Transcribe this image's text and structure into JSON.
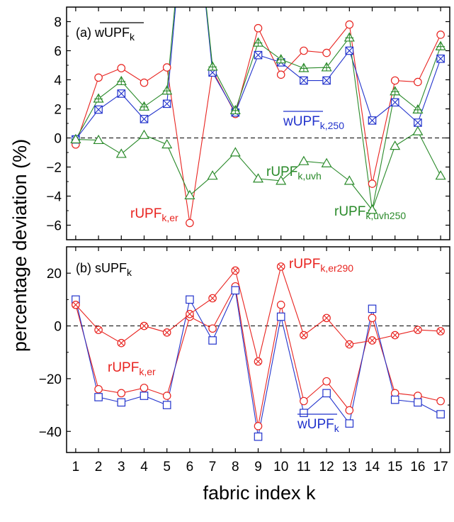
{
  "chart_data": [
    {
      "type": "line",
      "panel_label": "(a)",
      "panel_label_main": "wUPF",
      "panel_label_sub": "k",
      "panel_label_overline": true,
      "x": [
        1,
        2,
        3,
        4,
        5,
        6,
        7,
        8,
        9,
        10,
        11,
        12,
        13,
        14,
        15,
        16,
        17
      ],
      "ylim": [
        -7,
        9
      ],
      "yticks": [
        -6,
        -4,
        -2,
        0,
        2,
        4,
        6,
        8
      ],
      "xticks": [
        1,
        2,
        3,
        4,
        5,
        6,
        7,
        8,
        9,
        10,
        11,
        12,
        13,
        14,
        15,
        16,
        17
      ],
      "reference_line": 0,
      "series": [
        {
          "color": "#e8231f",
          "marker": "circle",
          "values": [
            -0.45,
            4.15,
            4.8,
            3.8,
            4.85,
            -5.85,
            4.65,
            1.65,
            7.55,
            4.35,
            6.0,
            5.85,
            7.8,
            -3.15,
            3.95,
            3.85,
            7.1
          ]
        },
        {
          "color": "#2233cc",
          "marker": "square-x",
          "values": [
            -0.1,
            1.95,
            3.05,
            1.3,
            2.35,
            20,
            4.5,
            1.75,
            5.7,
            5.2,
            3.95,
            3.95,
            6.0,
            1.2,
            2.45,
            1.05,
            5.45
          ]
        },
        {
          "color": "#2a8a2a",
          "marker": "triangle-plus",
          "values": [
            -0.1,
            2.7,
            3.9,
            2.15,
            3.25,
            20,
            4.9,
            1.9,
            6.55,
            5.4,
            4.8,
            4.85,
            6.9,
            -4.95,
            3.2,
            1.95,
            6.3
          ]
        },
        {
          "color": "#2a8a2a",
          "marker": "triangle",
          "values": [
            -0.1,
            -0.15,
            -1.1,
            0.2,
            -0.45,
            -3.95,
            -2.6,
            -1.0,
            -2.8,
            -2.95,
            -1.6,
            -1.75,
            -2.95,
            -4.95,
            -0.55,
            0.45,
            -2.6
          ]
        }
      ],
      "annotations": [
        {
          "main": "wUPF",
          "sub": "k,250",
          "overline": true,
          "color": "#2233cc"
        },
        {
          "main": "rUPF",
          "sub": "k,uvh",
          "overline": false,
          "color": "#2a8a2a"
        },
        {
          "main": "rUPF",
          "sub": "k,er",
          "overline": false,
          "color": "#e8231f"
        },
        {
          "main": "rUPF",
          "sub": "k,uvh250",
          "overline": false,
          "color": "#2a8a2a"
        }
      ]
    },
    {
      "type": "line",
      "panel_label": "(b)",
      "panel_label_main": "sUPF",
      "panel_label_sub": "k",
      "panel_label_overline": false,
      "x": [
        1,
        2,
        3,
        4,
        5,
        6,
        7,
        8,
        9,
        10,
        11,
        12,
        13,
        14,
        15,
        16,
        17
      ],
      "ylim": [
        -48,
        30
      ],
      "yticks": [
        -40,
        -20,
        0,
        20
      ],
      "xticks": [
        1,
        2,
        3,
        4,
        5,
        6,
        7,
        8,
        9,
        10,
        11,
        12,
        13,
        14,
        15,
        16,
        17
      ],
      "reference_line": 0,
      "series": [
        {
          "color": "#e8231f",
          "marker": "circle",
          "values": [
            8.0,
            -24.0,
            -25.5,
            -23.5,
            -26.5,
            3.5,
            -1.0,
            15.0,
            -38.0,
            8.0,
            -28.5,
            -21.0,
            -32.0,
            3.0,
            -25.5,
            -26.5,
            -28.5
          ]
        },
        {
          "color": "#2233cc",
          "marker": "square",
          "values": [
            10.0,
            -27.0,
            -29.0,
            -26.5,
            -30.0,
            10.0,
            -5.5,
            13.5,
            -42.0,
            3.5,
            -33.0,
            -25.5,
            -37.0,
            6.5,
            -28.0,
            -29.0,
            -33.5
          ]
        },
        {
          "color": "#e8231f",
          "marker": "circle-x",
          "values": [
            8.0,
            -1.5,
            -6.5,
            0.0,
            -2.5,
            4.5,
            10.5,
            21.0,
            -13.5,
            22.5,
            -3.5,
            3.0,
            -7.0,
            -5.5,
            -3.5,
            -1.5,
            -2.0
          ]
        }
      ],
      "annotations": [
        {
          "main": "rUPF",
          "sub": "k,er290",
          "overline": false,
          "color": "#e8231f"
        },
        {
          "main": "rUPF",
          "sub": "k,er",
          "overline": false,
          "color": "#e8231f"
        },
        {
          "main": "wUPF",
          "sub": "k",
          "overline": true,
          "color": "#2233cc"
        }
      ]
    }
  ],
  "ylabel": "percentage deviation (%)",
  "xlabel": "fabric index k"
}
